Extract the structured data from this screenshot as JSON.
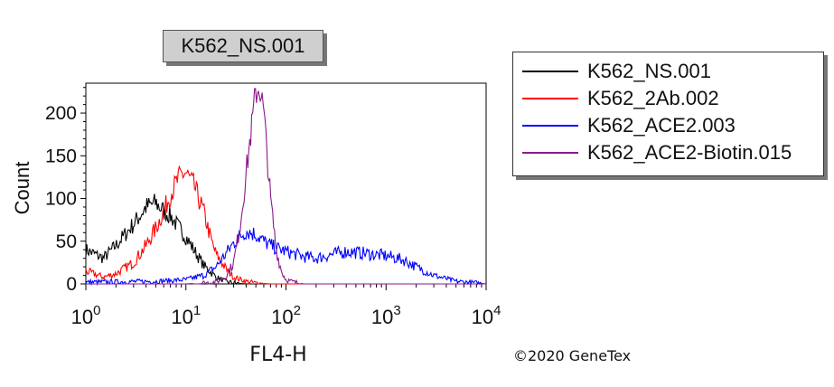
{
  "chart_data": {
    "type": "line",
    "title": "K562_NS.001",
    "xlabel": "FL4-H",
    "ylabel": "Count",
    "xscale": "log",
    "xlim": [
      1,
      10000
    ],
    "ylim": [
      0,
      235
    ],
    "x_ticks": [
      {
        "base": "10",
        "exp": "0",
        "value": 1
      },
      {
        "base": "10",
        "exp": "1",
        "value": 10
      },
      {
        "base": "10",
        "exp": "2",
        "value": 100
      },
      {
        "base": "10",
        "exp": "3",
        "value": 1000
      },
      {
        "base": "10",
        "exp": "4",
        "value": 10000
      }
    ],
    "y_ticks": [
      "0",
      "50",
      "100",
      "150",
      "200"
    ],
    "legend_position": "right",
    "grid": false,
    "series": [
      {
        "name": "K562_NS.001",
        "color": "#000000",
        "x": [
          1,
          1.5,
          2,
          3,
          4,
          5,
          6,
          7,
          8,
          10,
          12,
          15,
          20,
          25,
          30,
          40,
          50
        ],
        "y": [
          40,
          30,
          45,
          70,
          90,
          95,
          85,
          80,
          70,
          55,
          40,
          22,
          8,
          3,
          1,
          0,
          0
        ]
      },
      {
        "name": "K562_2Ab.002",
        "color": "#ff0000",
        "x": [
          1,
          1.5,
          2,
          3,
          4,
          5,
          6,
          7,
          8,
          9,
          10,
          12,
          15,
          18,
          20,
          25,
          30,
          40,
          50,
          70
        ],
        "y": [
          15,
          8,
          12,
          25,
          45,
          65,
          85,
          105,
          118,
          128,
          130,
          115,
          85,
          50,
          35,
          18,
          8,
          3,
          1,
          0
        ]
      },
      {
        "name": "K562_ACE2.003",
        "color": "#0000ff",
        "x": [
          1,
          5,
          10,
          15,
          20,
          25,
          30,
          40,
          50,
          60,
          70,
          80,
          100,
          150,
          200,
          300,
          400,
          600,
          800,
          1000,
          1500,
          2000,
          3000,
          5000,
          8000,
          10000
        ],
        "y": [
          2,
          3,
          5,
          10,
          20,
          35,
          48,
          62,
          58,
          50,
          45,
          42,
          38,
          32,
          30,
          35,
          38,
          36,
          34,
          33,
          28,
          20,
          10,
          3,
          1,
          0
        ]
      },
      {
        "name": "K562_ACE2-Biotin.015",
        "color": "#8b1a8b",
        "x": [
          1,
          10,
          20,
          25,
          30,
          35,
          40,
          45,
          50,
          55,
          60,
          65,
          70,
          80,
          90,
          100,
          120,
          150,
          200
        ],
        "y": [
          0,
          0,
          2,
          8,
          25,
          70,
          130,
          180,
          225,
          230,
          200,
          150,
          100,
          40,
          15,
          5,
          2,
          0,
          0
        ]
      }
    ]
  },
  "copyright": "©2020 GeneTex"
}
